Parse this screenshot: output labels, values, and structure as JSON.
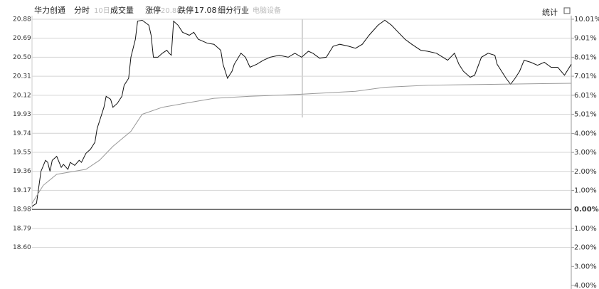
{
  "header": {
    "name": "华力创通",
    "tab_intraday": "分时",
    "tab_10day": "10日",
    "tab_volume": "成交量",
    "limit_up_label": "涨停",
    "limit_up": "20.88",
    "limit_down_label": "跌停",
    "limit_down": "17.08",
    "industry_label": "细分行业",
    "industry": "电脑设备",
    "stats": "统计"
  },
  "chart_data": {
    "type": "line",
    "xlim": [
      0,
      240
    ],
    "ylim": [
      18.22,
      20.88
    ],
    "yticks": [
      {
        "value": 20.88,
        "label": "20.88"
      },
      {
        "value": 20.69,
        "label": "20.69"
      },
      {
        "value": 20.5,
        "label": "20.50"
      },
      {
        "value": 20.31,
        "label": "20.31"
      },
      {
        "value": 20.12,
        "label": "20.12"
      },
      {
        "value": 19.93,
        "label": "19.93"
      },
      {
        "value": 19.74,
        "label": "19.74"
      },
      {
        "value": 19.55,
        "label": "19.55"
      },
      {
        "value": 19.36,
        "label": "19.36"
      },
      {
        "value": 19.17,
        "label": "19.17"
      },
      {
        "value": 18.98,
        "label": "18.98"
      },
      {
        "value": 18.79,
        "label": "18.79"
      },
      {
        "value": 18.6,
        "label": "18.60"
      }
    ],
    "y2lim": [
      -4.0,
      10.01
    ],
    "y2ticks": [
      {
        "value": 10.01,
        "label": "10.01%"
      },
      {
        "value": 9.01,
        "label": "9.01%"
      },
      {
        "value": 8.01,
        "label": "8.01%"
      },
      {
        "value": 7.01,
        "label": "7.01%"
      },
      {
        "value": 6.01,
        "label": "6.01%"
      },
      {
        "value": 5.01,
        "label": "5.01%"
      },
      {
        "value": 4.0,
        "label": "4.00%"
      },
      {
        "value": 3.0,
        "label": "3.00%"
      },
      {
        "value": 2.0,
        "label": "2.00%"
      },
      {
        "value": 1.0,
        "label": "1.00%"
      },
      {
        "value": 0,
        "label": "0.00%"
      },
      {
        "value": -1.0,
        "label": "1.00%"
      },
      {
        "value": -2.0,
        "label": "2.00%"
      },
      {
        "value": -3.0,
        "label": "3.00%"
      },
      {
        "value": -4.0,
        "label": "4.00%"
      }
    ],
    "grid": true,
    "series": [
      {
        "color": "#111111",
        "x": [
          0,
          2,
          4,
          6,
          7,
          8,
          9,
          11,
          13,
          14,
          16,
          17,
          19,
          21,
          22,
          24,
          26,
          28,
          29,
          30,
          32,
          33,
          35,
          36,
          38,
          40,
          41,
          43,
          44,
          46,
          47,
          49,
          52,
          53,
          54,
          56,
          58,
          60,
          61,
          62,
          63,
          65,
          67,
          70,
          72,
          74,
          78,
          81,
          84,
          85,
          87,
          89,
          90,
          93,
          95,
          97,
          100,
          103,
          106,
          110,
          114,
          117,
          120,
          123,
          125,
          128,
          131,
          134,
          137,
          141,
          144,
          147,
          150,
          154,
          157,
          160,
          163,
          166,
          169,
          173,
          176,
          180,
          185,
          188,
          190,
          192,
          195,
          197,
          200,
          203,
          206,
          207,
          211,
          213,
          215,
          217,
          219,
          222,
          225,
          228,
          231,
          234,
          237,
          240
        ],
        "values": [
          19.01,
          19.04,
          19.36,
          19.47,
          19.45,
          19.36,
          19.47,
          19.51,
          19.4,
          19.43,
          19.38,
          19.45,
          19.42,
          19.47,
          19.45,
          19.54,
          19.58,
          19.65,
          19.79,
          19.86,
          20.0,
          20.11,
          20.08,
          20.0,
          20.04,
          20.11,
          20.22,
          20.29,
          20.5,
          20.68,
          20.86,
          20.87,
          20.82,
          20.72,
          20.5,
          20.5,
          20.54,
          20.57,
          20.54,
          20.52,
          20.86,
          20.82,
          20.75,
          20.72,
          20.75,
          20.68,
          20.64,
          20.63,
          20.57,
          20.43,
          20.29,
          20.36,
          20.43,
          20.54,
          20.5,
          20.4,
          20.43,
          20.47,
          20.5,
          20.52,
          20.5,
          20.54,
          20.5,
          20.56,
          20.54,
          20.49,
          20.5,
          20.61,
          20.63,
          20.61,
          20.59,
          20.63,
          20.72,
          20.82,
          20.87,
          20.82,
          20.75,
          20.68,
          20.63,
          20.57,
          20.56,
          20.54,
          20.47,
          20.54,
          20.43,
          20.36,
          20.3,
          20.32,
          20.5,
          20.54,
          20.52,
          20.43,
          20.29,
          20.23,
          20.29,
          20.36,
          20.47,
          20.45,
          20.42,
          20.45,
          20.4,
          20.4,
          20.32,
          20.43
        ]
      },
      {
        "color": "#999999",
        "x": [
          0,
          5,
          11,
          24,
          30,
          36,
          44,
          49,
          58,
          68,
          81,
          97,
          119,
          144,
          157,
          176,
          207,
          240
        ],
        "values": [
          19.04,
          19.22,
          19.33,
          19.38,
          19.47,
          19.61,
          19.76,
          19.93,
          20.0,
          20.04,
          20.09,
          20.11,
          20.13,
          20.16,
          20.2,
          20.22,
          20.23,
          20.24
        ]
      }
    ]
  }
}
